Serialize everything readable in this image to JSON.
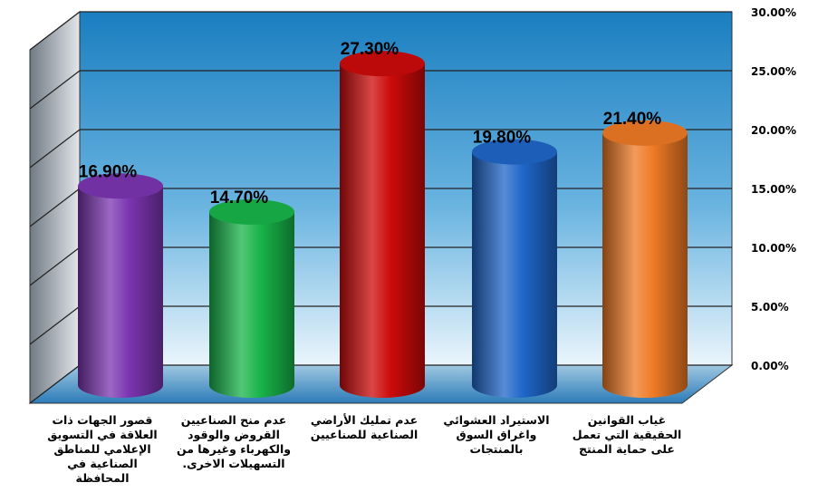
{
  "chart_data": {
    "type": "bar",
    "title": "",
    "xlabel": "",
    "ylabel": "",
    "categories": [
      "قصور الجهات ذات العلاقة في التسويق الإعلامي للمناطق الصناعية في المحافظة",
      "عدم منح الصناعيين القروض والوقود والكهرباء وغيرها من التسهيلات الاخرى.",
      "عدم تمليك الأراضي الصناعية للصناعيين",
      "الاستيراد العشوائي واغراق السوق بالمنتجات",
      "غياب القوانين الحقيقية التي تعمل على حماية المنتج"
    ],
    "values": [
      16.9,
      14.7,
      27.3,
      19.8,
      21.4
    ],
    "data_labels": [
      "16.90%",
      "14.70%",
      "27.30%",
      "19.80%",
      "21.40%"
    ],
    "ylim": [
      0,
      30
    ],
    "yticks": [
      "0.00%",
      "5.00%",
      "10.00%",
      "15.00%",
      "20.00%",
      "25.00%",
      "30.00%"
    ],
    "grid": true,
    "legend": "none",
    "colors": [
      "#7b35b0",
      "#18b44a",
      "#cc0a0a",
      "#1f66c8",
      "#ee7a25"
    ]
  }
}
